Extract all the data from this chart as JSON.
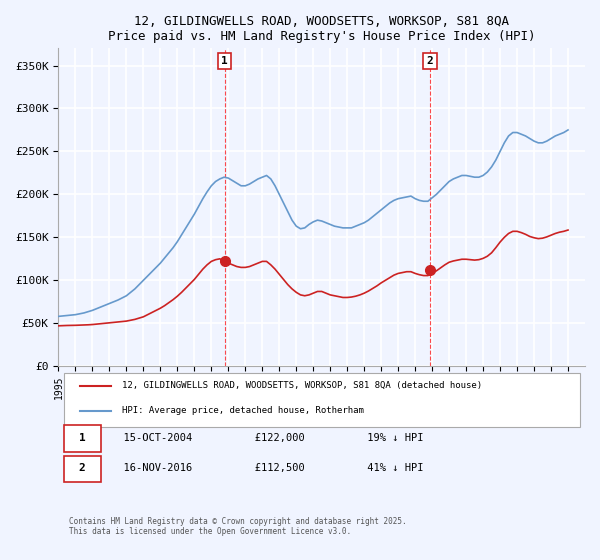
{
  "title_line1": "12, GILDINGWELLS ROAD, WOODSETTS, WORKSOP, S81 8QA",
  "title_line2": "Price paid vs. HM Land Registry's House Price Index (HPI)",
  "ylabel_ticks": [
    "£0",
    "£50K",
    "£100K",
    "£150K",
    "£200K",
    "£250K",
    "£300K",
    "£350K"
  ],
  "ytick_values": [
    0,
    50000,
    100000,
    150000,
    200000,
    250000,
    300000,
    350000
  ],
  "ylim": [
    0,
    370000
  ],
  "xlim_start": 1995,
  "xlim_end": 2026,
  "background_color": "#f0f4ff",
  "plot_bg_color": "#f0f4ff",
  "grid_color": "#ffffff",
  "hpi_color": "#6699cc",
  "price_color": "#cc2222",
  "sale1_x": 2004.79,
  "sale1_y": 122000,
  "sale2_x": 2016.88,
  "sale2_y": 112500,
  "sale1_label": "1",
  "sale2_label": "2",
  "legend_label1": "12, GILDINGWELLS ROAD, WOODSETTS, WORKSOP, S81 8QA (detached house)",
  "legend_label2": "HPI: Average price, detached house, Rotherham",
  "table_row1": [
    "1",
    "15-OCT-2004",
    "£122,000",
    "19% ↓ HPI"
  ],
  "table_row2": [
    "2",
    "16-NOV-2016",
    "£112,500",
    "41% ↓ HPI"
  ],
  "footer": "Contains HM Land Registry data © Crown copyright and database right 2025.\nThis data is licensed under the Open Government Licence v3.0.",
  "dashed_line1_x": 2004.79,
  "dashed_line2_x": 2016.88,
  "hpi_data_x": [
    1995,
    1995.25,
    1995.5,
    1995.75,
    1996,
    1996.25,
    1996.5,
    1996.75,
    1997,
    1997.25,
    1997.5,
    1997.75,
    1998,
    1998.25,
    1998.5,
    1998.75,
    1999,
    1999.25,
    1999.5,
    1999.75,
    2000,
    2000.25,
    2000.5,
    2000.75,
    2001,
    2001.25,
    2001.5,
    2001.75,
    2002,
    2002.25,
    2002.5,
    2002.75,
    2003,
    2003.25,
    2003.5,
    2003.75,
    2004,
    2004.25,
    2004.5,
    2004.75,
    2005,
    2005.25,
    2005.5,
    2005.75,
    2006,
    2006.25,
    2006.5,
    2006.75,
    2007,
    2007.25,
    2007.5,
    2007.75,
    2008,
    2008.25,
    2008.5,
    2008.75,
    2009,
    2009.25,
    2009.5,
    2009.75,
    2010,
    2010.25,
    2010.5,
    2010.75,
    2011,
    2011.25,
    2011.5,
    2011.75,
    2012,
    2012.25,
    2012.5,
    2012.75,
    2013,
    2013.25,
    2013.5,
    2013.75,
    2014,
    2014.25,
    2014.5,
    2014.75,
    2015,
    2015.25,
    2015.5,
    2015.75,
    2016,
    2016.25,
    2016.5,
    2016.75,
    2017,
    2017.25,
    2017.5,
    2017.75,
    2018,
    2018.25,
    2018.5,
    2018.75,
    2019,
    2019.25,
    2019.5,
    2019.75,
    2020,
    2020.25,
    2020.5,
    2020.75,
    2021,
    2021.25,
    2021.5,
    2021.75,
    2022,
    2022.25,
    2022.5,
    2022.75,
    2023,
    2023.25,
    2023.5,
    2023.75,
    2024,
    2024.25,
    2024.5,
    2024.75,
    2025
  ],
  "hpi_data_y": [
    58000,
    58500,
    59000,
    59500,
    60000,
    61000,
    62000,
    63500,
    65000,
    67000,
    69000,
    71000,
    73000,
    75000,
    77000,
    79500,
    82000,
    86000,
    90000,
    95000,
    100000,
    105000,
    110000,
    115000,
    120000,
    126000,
    132000,
    138000,
    145000,
    153000,
    161000,
    169000,
    177000,
    186000,
    195000,
    203000,
    210000,
    215000,
    218000,
    220000,
    219000,
    216000,
    213000,
    210000,
    210000,
    212000,
    215000,
    218000,
    220000,
    222000,
    218000,
    210000,
    200000,
    190000,
    180000,
    170000,
    163000,
    160000,
    161000,
    165000,
    168000,
    170000,
    169000,
    167000,
    165000,
    163000,
    162000,
    161000,
    161000,
    161000,
    163000,
    165000,
    167000,
    170000,
    174000,
    178000,
    182000,
    186000,
    190000,
    193000,
    195000,
    196000,
    197000,
    198000,
    195000,
    193000,
    192000,
    192000,
    196000,
    200000,
    205000,
    210000,
    215000,
    218000,
    220000,
    222000,
    222000,
    221000,
    220000,
    220000,
    222000,
    226000,
    232000,
    240000,
    250000,
    260000,
    268000,
    272000,
    272000,
    270000,
    268000,
    265000,
    262000,
    260000,
    260000,
    262000,
    265000,
    268000,
    270000,
    272000,
    275000
  ],
  "price_data_x": [
    1995,
    1995.25,
    1995.5,
    1995.75,
    1996,
    1996.25,
    1996.5,
    1996.75,
    1997,
    1997.25,
    1997.5,
    1997.75,
    1998,
    1998.25,
    1998.5,
    1998.75,
    1999,
    1999.25,
    1999.5,
    1999.75,
    2000,
    2000.25,
    2000.5,
    2000.75,
    2001,
    2001.25,
    2001.5,
    2001.75,
    2002,
    2002.25,
    2002.5,
    2002.75,
    2003,
    2003.25,
    2003.5,
    2003.75,
    2004,
    2004.25,
    2004.5,
    2004.75,
    2005,
    2005.25,
    2005.5,
    2005.75,
    2006,
    2006.25,
    2006.5,
    2006.75,
    2007,
    2007.25,
    2007.5,
    2007.75,
    2008,
    2008.25,
    2008.5,
    2008.75,
    2009,
    2009.25,
    2009.5,
    2009.75,
    2010,
    2010.25,
    2010.5,
    2010.75,
    2011,
    2011.25,
    2011.5,
    2011.75,
    2012,
    2012.25,
    2012.5,
    2012.75,
    2013,
    2013.25,
    2013.5,
    2013.75,
    2014,
    2014.25,
    2014.5,
    2014.75,
    2015,
    2015.25,
    2015.5,
    2015.75,
    2016,
    2016.25,
    2016.5,
    2016.75,
    2017,
    2017.25,
    2017.5,
    2017.75,
    2018,
    2018.25,
    2018.5,
    2018.75,
    2019,
    2019.25,
    2019.5,
    2019.75,
    2020,
    2020.25,
    2020.5,
    2020.75,
    2021,
    2021.25,
    2021.5,
    2021.75,
    2022,
    2022.25,
    2022.5,
    2022.75,
    2023,
    2023.25,
    2023.5,
    2023.75,
    2024,
    2024.25,
    2024.5,
    2024.75,
    2025
  ],
  "price_data_y": [
    47000,
    47200,
    47400,
    47500,
    47600,
    47800,
    48000,
    48200,
    48500,
    49000,
    49500,
    50000,
    50500,
    51000,
    51500,
    52000,
    52500,
    53500,
    54500,
    56000,
    57500,
    60000,
    62500,
    65000,
    67500,
    70500,
    74000,
    77500,
    81500,
    86000,
    91000,
    96000,
    101000,
    107000,
    113000,
    118000,
    122000,
    124000,
    125000,
    122000,
    120000,
    118000,
    116000,
    115000,
    115000,
    116000,
    118000,
    120000,
    122000,
    122000,
    118000,
    113000,
    107000,
    101000,
    95000,
    90000,
    86000,
    83000,
    82000,
    83000,
    85000,
    87000,
    87000,
    85000,
    83000,
    82000,
    81000,
    80000,
    80000,
    80500,
    81500,
    83000,
    85000,
    87500,
    90500,
    93500,
    97000,
    100000,
    103000,
    106000,
    108000,
    109000,
    110000,
    110000,
    108000,
    106500,
    105500,
    105500,
    108000,
    111000,
    114500,
    118000,
    121000,
    122500,
    123500,
    124500,
    124500,
    124000,
    123500,
    124000,
    125500,
    128000,
    132000,
    138000,
    144500,
    150000,
    154500,
    157000,
    157000,
    155500,
    153500,
    151000,
    149500,
    148500,
    149000,
    150500,
    152500,
    154500,
    156000,
    157000,
    158500
  ]
}
